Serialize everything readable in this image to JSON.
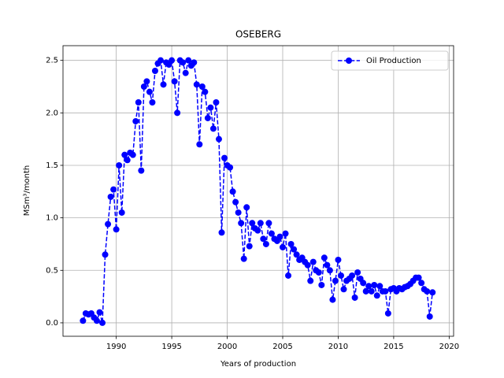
{
  "chart_data": {
    "type": "line",
    "title": "OSEBERG",
    "xlabel": "Years of production",
    "ylabel": "MSm³/month",
    "xlim": [
      1985.2,
      2020.4
    ],
    "ylim": [
      -0.128,
      2.64
    ],
    "xticks": [
      1990,
      1995,
      2000,
      2005,
      2010,
      2015,
      2020
    ],
    "yticks": [
      {
        "value": 0,
        "label": "0.0"
      },
      {
        "value": 0.5,
        "label": "0.5"
      },
      {
        "value": 1,
        "label": "1.0"
      },
      {
        "value": 1.5,
        "label": "1.5"
      },
      {
        "value": 2,
        "label": "2.0"
      },
      {
        "value": 2.5,
        "label": "2.5"
      }
    ],
    "grid": true,
    "legend": "upper right",
    "x": [
      1987.0,
      1987.25,
      1987.5,
      1987.75,
      1988.0,
      1988.25,
      1988.5,
      1988.75,
      1989.0,
      1989.25,
      1989.5,
      1989.75,
      1990.0,
      1990.25,
      1990.5,
      1990.75,
      1991.0,
      1991.25,
      1991.5,
      1991.75,
      1992.0,
      1992.25,
      1992.5,
      1992.75,
      1993.0,
      1993.25,
      1993.5,
      1993.75,
      1994.0,
      1994.25,
      1994.5,
      1994.75,
      1995.0,
      1995.25,
      1995.5,
      1995.75,
      1996.0,
      1996.25,
      1996.5,
      1996.75,
      1997.0,
      1997.25,
      1997.5,
      1997.75,
      1998.0,
      1998.25,
      1998.5,
      1998.75,
      1999.0,
      1999.25,
      1999.5,
      1999.75,
      2000.0,
      2000.25,
      2000.5,
      2000.75,
      2001.0,
      2001.25,
      2001.5,
      2001.75,
      2002.0,
      2002.25,
      2002.5,
      2002.75,
      2003.0,
      2003.25,
      2003.5,
      2003.75,
      2004.0,
      2004.25,
      2004.5,
      2004.75,
      2005.0,
      2005.25,
      2005.5,
      2005.75,
      2006.0,
      2006.25,
      2006.5,
      2006.75,
      2007.0,
      2007.25,
      2007.5,
      2007.75,
      2008.0,
      2008.25,
      2008.5,
      2008.75,
      2009.0,
      2009.25,
      2009.5,
      2009.75,
      2010.0,
      2010.25,
      2010.5,
      2010.75,
      2011.0,
      2011.25,
      2011.5,
      2011.75,
      2012.0,
      2012.25,
      2012.5,
      2012.75,
      2013.0,
      2013.25,
      2013.5,
      2013.75,
      2014.0,
      2014.25,
      2014.5,
      2014.75,
      2015.0,
      2015.25,
      2015.5,
      2015.75,
      2016.0,
      2016.25,
      2016.5,
      2016.75,
      2017.0,
      2017.25,
      2017.5,
      2017.75,
      2018.0,
      2018.25,
      2018.5
    ],
    "series": [
      {
        "name": "Oil Production",
        "color": "#0000ff",
        "values": [
          0.02,
          0.09,
          0.08,
          0.09,
          0.05,
          0.02,
          0.1,
          0.0,
          0.65,
          0.94,
          1.2,
          1.27,
          0.89,
          1.5,
          1.05,
          1.6,
          1.55,
          1.62,
          1.6,
          1.92,
          2.1,
          1.45,
          2.25,
          2.3,
          2.2,
          2.1,
          2.4,
          2.47,
          2.5,
          2.27,
          2.48,
          2.46,
          2.5,
          2.3,
          2.0,
          2.5,
          2.48,
          2.38,
          2.5,
          2.45,
          2.48,
          2.27,
          1.7,
          2.25,
          2.2,
          1.95,
          2.05,
          1.85,
          2.1,
          1.75,
          0.86,
          1.57,
          1.5,
          1.48,
          1.25,
          1.15,
          1.05,
          0.95,
          0.61,
          1.1,
          0.73,
          0.95,
          0.9,
          0.88,
          0.95,
          0.8,
          0.75,
          0.95,
          0.85,
          0.8,
          0.78,
          0.82,
          0.72,
          0.85,
          0.45,
          0.75,
          0.7,
          0.65,
          0.6,
          0.62,
          0.58,
          0.55,
          0.4,
          0.58,
          0.5,
          0.48,
          0.36,
          0.62,
          0.55,
          0.5,
          0.22,
          0.4,
          0.6,
          0.45,
          0.32,
          0.4,
          0.42,
          0.45,
          0.24,
          0.48,
          0.42,
          0.38,
          0.3,
          0.35,
          0.3,
          0.36,
          0.26,
          0.35,
          0.3,
          0.3,
          0.09,
          0.32,
          0.33,
          0.3,
          0.33,
          0.32,
          0.34,
          0.35,
          0.37,
          0.4,
          0.43,
          0.43,
          0.38,
          0.32,
          0.3,
          0.06,
          0.29
        ]
      }
    ]
  }
}
